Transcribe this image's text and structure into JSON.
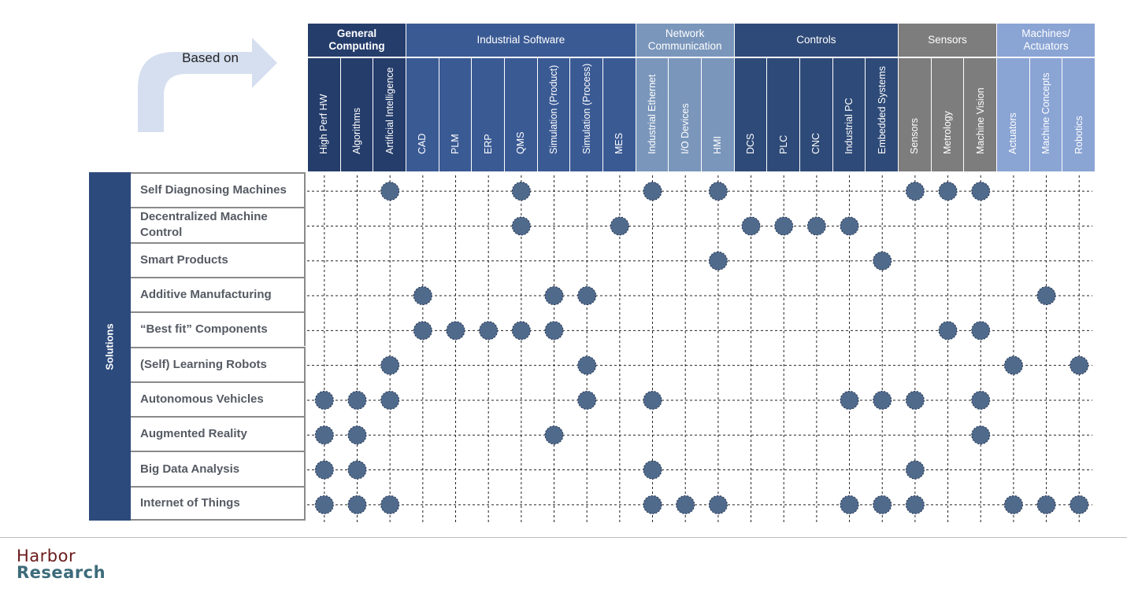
{
  "arrow": {
    "label": "Based on"
  },
  "colors": {
    "general_computing": "#253d6b",
    "industrial_software": "#3a5a94",
    "network_communication": "#7a96bb",
    "controls": "#2e4a78",
    "sensors": "#7d7d7d",
    "machines_actuators": "#8aa4d4",
    "solutions": "#2c4a7c",
    "dot_fill": "#506a8c",
    "dot_stroke": "#1e2f4a"
  },
  "column_groups": [
    {
      "label": "General\nComputing",
      "bold": true,
      "color_key": "general_computing",
      "columns": [
        "High Perf HW",
        "Algorithms",
        "Artificial Intelligence"
      ]
    },
    {
      "label": "Industrial Software",
      "bold": false,
      "color_key": "industrial_software",
      "columns": [
        "CAD",
        "PLM",
        "ERP",
        "QMS",
        "Simulation (Product)",
        "Simulation (Process)",
        "MES"
      ]
    },
    {
      "label": "Network\nCommunication",
      "bold": false,
      "color_key": "network_communication",
      "columns": [
        "Industrial Ethernet",
        "I/O Devices",
        "HMI"
      ]
    },
    {
      "label": "Controls",
      "bold": false,
      "color_key": "controls",
      "columns": [
        "DCS",
        "PLC",
        "CNC",
        "Industrial PC",
        "Embedded Systems"
      ]
    },
    {
      "label": "Sensors",
      "bold": false,
      "color_key": "sensors",
      "columns": [
        "Sensors",
        "Metrology",
        "Machine Vision"
      ]
    },
    {
      "label": "Machines/\nActuators",
      "bold": false,
      "color_key": "machines_actuators",
      "columns": [
        "Actuators",
        "Machine Concepts",
        "Robotics"
      ]
    }
  ],
  "solutions_label": "Solutions",
  "rows": [
    {
      "label": "Self Diagnosing Machines",
      "dots": [
        2,
        6,
        10,
        12,
        18,
        19,
        20
      ]
    },
    {
      "label": "Decentralized Machine Control",
      "dots": [
        6,
        9,
        13,
        14,
        15,
        16
      ]
    },
    {
      "label": "Smart Products",
      "dots": [
        12,
        17
      ]
    },
    {
      "label": "Additive Manufacturing",
      "dots": [
        3,
        7,
        8,
        22
      ]
    },
    {
      "label": "“Best fit” Components",
      "dots": [
        3,
        4,
        5,
        6,
        7,
        19,
        20
      ]
    },
    {
      "label": "(Self) Learning Robots",
      "dots": [
        2,
        8,
        21,
        23
      ]
    },
    {
      "label": "Autonomous Vehicles",
      "dots": [
        0,
        1,
        2,
        8,
        10,
        16,
        17,
        18,
        20
      ]
    },
    {
      "label": "Augmented Reality",
      "dots": [
        0,
        1,
        7,
        20
      ]
    },
    {
      "label": "Big Data Analysis",
      "dots": [
        0,
        1,
        10,
        18
      ]
    },
    {
      "label": "Internet of Things",
      "dots": [
        0,
        1,
        2,
        10,
        11,
        12,
        16,
        17,
        18,
        21,
        22,
        23
      ]
    }
  ],
  "logo": {
    "line1": "Harbor",
    "line2": "Research"
  }
}
